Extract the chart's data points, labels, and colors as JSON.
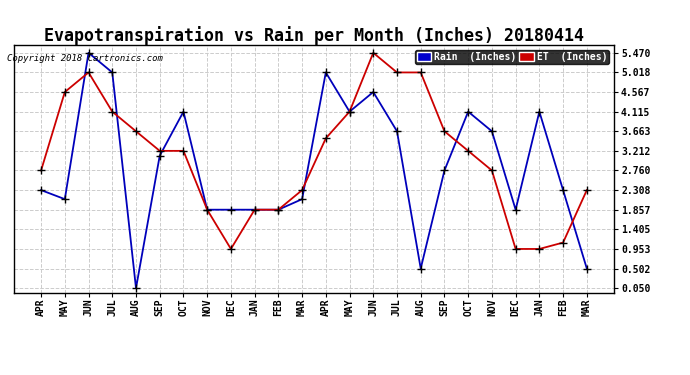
{
  "title": "Evapotranspiration vs Rain per Month (Inches) 20180414",
  "copyright": "Copyright 2018 Cartronics.com",
  "legend_rain": "Rain  (Inches)",
  "legend_et": "ET  (Inches)",
  "months": [
    "APR",
    "MAY",
    "JUN",
    "JUL",
    "AUG",
    "SEP",
    "OCT",
    "NOV",
    "DEC",
    "JAN",
    "FEB",
    "MAR",
    "APR",
    "MAY",
    "JUN",
    "JUL",
    "AUG",
    "SEP",
    "OCT",
    "NOV",
    "DEC",
    "JAN",
    "FEB",
    "MAR"
  ],
  "rain": [
    2.308,
    2.1,
    5.47,
    5.018,
    0.05,
    3.1,
    4.115,
    1.857,
    1.857,
    1.857,
    1.857,
    2.1,
    5.018,
    4.115,
    4.567,
    3.663,
    0.502,
    2.76,
    4.115,
    3.663,
    1.857,
    4.115,
    2.308,
    0.502
  ],
  "et": [
    2.76,
    4.567,
    5.018,
    4.115,
    3.663,
    3.212,
    3.212,
    1.857,
    0.953,
    1.857,
    1.857,
    2.308,
    3.5,
    4.115,
    5.47,
    5.018,
    5.018,
    3.663,
    3.212,
    2.76,
    0.953,
    0.953,
    1.1,
    2.308
  ],
  "rain_color": "#0000bb",
  "et_color": "#cc0000",
  "ytick_labels": [
    "0.050",
    "0.502",
    "0.953",
    "1.405",
    "1.857",
    "2.308",
    "2.760",
    "3.212",
    "3.663",
    "4.115",
    "4.567",
    "5.018",
    "5.470"
  ],
  "ytick_values": [
    0.05,
    0.502,
    0.953,
    1.405,
    1.857,
    2.308,
    2.76,
    3.212,
    3.663,
    4.115,
    4.567,
    5.018,
    5.47
  ],
  "ylim_min": -0.05,
  "ylim_max": 5.65,
  "bg_color": "#ffffff",
  "grid_color": "#cccccc",
  "title_fontsize": 12,
  "legend_bg_rain": "#0000cc",
  "legend_bg_et": "#cc0000",
  "marker_size": 4,
  "line_width": 1.3
}
